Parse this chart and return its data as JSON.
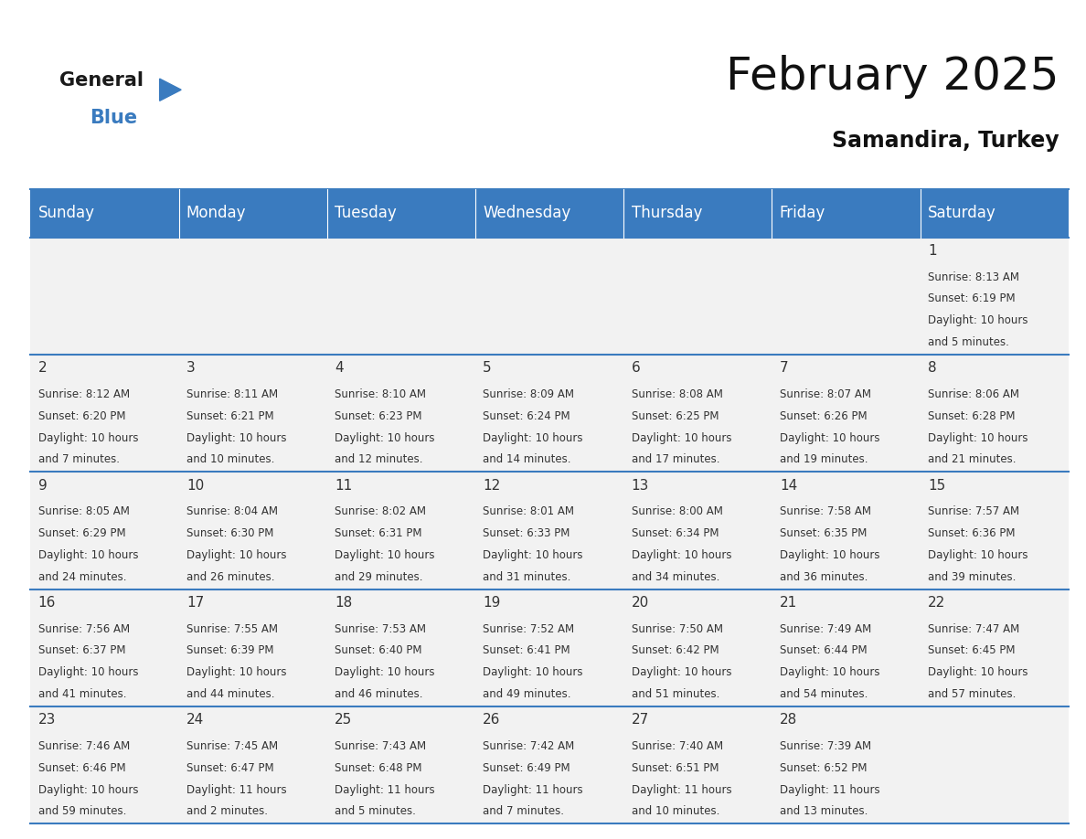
{
  "title": "February 2025",
  "subtitle": "Samandira, Turkey",
  "header_color": "#3a7bbf",
  "header_text_color": "#ffffff",
  "cell_bg_color": "#f2f2f2",
  "border_color": "#3a7bbf",
  "text_color": "#333333",
  "days_of_week": [
    "Sunday",
    "Monday",
    "Tuesday",
    "Wednesday",
    "Thursday",
    "Friday",
    "Saturday"
  ],
  "calendar_data": [
    [
      null,
      null,
      null,
      null,
      null,
      null,
      {
        "day": 1,
        "sunrise": "8:13 AM",
        "sunset": "6:19 PM",
        "daylight_hours": 10,
        "daylight_minutes": 5
      }
    ],
    [
      {
        "day": 2,
        "sunrise": "8:12 AM",
        "sunset": "6:20 PM",
        "daylight_hours": 10,
        "daylight_minutes": 7
      },
      {
        "day": 3,
        "sunrise": "8:11 AM",
        "sunset": "6:21 PM",
        "daylight_hours": 10,
        "daylight_minutes": 10
      },
      {
        "day": 4,
        "sunrise": "8:10 AM",
        "sunset": "6:23 PM",
        "daylight_hours": 10,
        "daylight_minutes": 12
      },
      {
        "day": 5,
        "sunrise": "8:09 AM",
        "sunset": "6:24 PM",
        "daylight_hours": 10,
        "daylight_minutes": 14
      },
      {
        "day": 6,
        "sunrise": "8:08 AM",
        "sunset": "6:25 PM",
        "daylight_hours": 10,
        "daylight_minutes": 17
      },
      {
        "day": 7,
        "sunrise": "8:07 AM",
        "sunset": "6:26 PM",
        "daylight_hours": 10,
        "daylight_minutes": 19
      },
      {
        "day": 8,
        "sunrise": "8:06 AM",
        "sunset": "6:28 PM",
        "daylight_hours": 10,
        "daylight_minutes": 21
      }
    ],
    [
      {
        "day": 9,
        "sunrise": "8:05 AM",
        "sunset": "6:29 PM",
        "daylight_hours": 10,
        "daylight_minutes": 24
      },
      {
        "day": 10,
        "sunrise": "8:04 AM",
        "sunset": "6:30 PM",
        "daylight_hours": 10,
        "daylight_minutes": 26
      },
      {
        "day": 11,
        "sunrise": "8:02 AM",
        "sunset": "6:31 PM",
        "daylight_hours": 10,
        "daylight_minutes": 29
      },
      {
        "day": 12,
        "sunrise": "8:01 AM",
        "sunset": "6:33 PM",
        "daylight_hours": 10,
        "daylight_minutes": 31
      },
      {
        "day": 13,
        "sunrise": "8:00 AM",
        "sunset": "6:34 PM",
        "daylight_hours": 10,
        "daylight_minutes": 34
      },
      {
        "day": 14,
        "sunrise": "7:58 AM",
        "sunset": "6:35 PM",
        "daylight_hours": 10,
        "daylight_minutes": 36
      },
      {
        "day": 15,
        "sunrise": "7:57 AM",
        "sunset": "6:36 PM",
        "daylight_hours": 10,
        "daylight_minutes": 39
      }
    ],
    [
      {
        "day": 16,
        "sunrise": "7:56 AM",
        "sunset": "6:37 PM",
        "daylight_hours": 10,
        "daylight_minutes": 41
      },
      {
        "day": 17,
        "sunrise": "7:55 AM",
        "sunset": "6:39 PM",
        "daylight_hours": 10,
        "daylight_minutes": 44
      },
      {
        "day": 18,
        "sunrise": "7:53 AM",
        "sunset": "6:40 PM",
        "daylight_hours": 10,
        "daylight_minutes": 46
      },
      {
        "day": 19,
        "sunrise": "7:52 AM",
        "sunset": "6:41 PM",
        "daylight_hours": 10,
        "daylight_minutes": 49
      },
      {
        "day": 20,
        "sunrise": "7:50 AM",
        "sunset": "6:42 PM",
        "daylight_hours": 10,
        "daylight_minutes": 51
      },
      {
        "day": 21,
        "sunrise": "7:49 AM",
        "sunset": "6:44 PM",
        "daylight_hours": 10,
        "daylight_minutes": 54
      },
      {
        "day": 22,
        "sunrise": "7:47 AM",
        "sunset": "6:45 PM",
        "daylight_hours": 10,
        "daylight_minutes": 57
      }
    ],
    [
      {
        "day": 23,
        "sunrise": "7:46 AM",
        "sunset": "6:46 PM",
        "daylight_hours": 10,
        "daylight_minutes": 59
      },
      {
        "day": 24,
        "sunrise": "7:45 AM",
        "sunset": "6:47 PM",
        "daylight_hours": 11,
        "daylight_minutes": 2
      },
      {
        "day": 25,
        "sunrise": "7:43 AM",
        "sunset": "6:48 PM",
        "daylight_hours": 11,
        "daylight_minutes": 5
      },
      {
        "day": 26,
        "sunrise": "7:42 AM",
        "sunset": "6:49 PM",
        "daylight_hours": 11,
        "daylight_minutes": 7
      },
      {
        "day": 27,
        "sunrise": "7:40 AM",
        "sunset": "6:51 PM",
        "daylight_hours": 11,
        "daylight_minutes": 10
      },
      {
        "day": 28,
        "sunrise": "7:39 AM",
        "sunset": "6:52 PM",
        "daylight_hours": 11,
        "daylight_minutes": 13
      },
      null
    ]
  ],
  "logo_general_color": "#1a1a1a",
  "logo_blue_color": "#3a7bbf",
  "logo_triangle_color": "#3a7bbf",
  "title_fontsize": 36,
  "subtitle_fontsize": 17,
  "day_header_fontsize": 12,
  "day_num_fontsize": 11,
  "cell_text_fontsize": 8.5
}
